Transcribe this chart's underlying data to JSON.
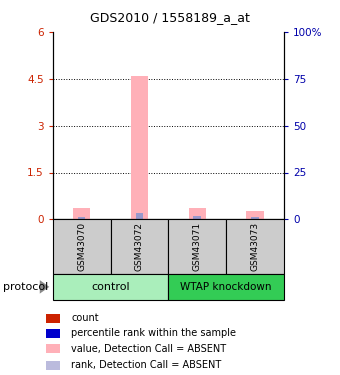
{
  "title": "GDS2010 / 1558189_a_at",
  "samples": [
    "GSM43070",
    "GSM43072",
    "GSM43071",
    "GSM43073"
  ],
  "ylim_left": [
    0,
    6
  ],
  "ylim_right": [
    0,
    100
  ],
  "yticks_left": [
    0,
    1.5,
    3.0,
    4.5,
    6
  ],
  "yticks_right": [
    0,
    25,
    50,
    75,
    100
  ],
  "bar_values_pink": [
    0.35,
    4.6,
    0.37,
    0.27
  ],
  "bar_values_blue": [
    0.09,
    0.22,
    0.11,
    0.09
  ],
  "pink_color": "#FFB0B8",
  "blue_color": "#9999CC",
  "sample_box_color": "#CCCCCC",
  "ctrl_color": "#AAEEBB",
  "wtap_color": "#33CC55",
  "legend_items": [
    {
      "color": "#CC2200",
      "label": "count"
    },
    {
      "color": "#0000CC",
      "label": "percentile rank within the sample"
    },
    {
      "color": "#FFB0B8",
      "label": "value, Detection Call = ABSENT"
    },
    {
      "color": "#BBBBDD",
      "label": "rank, Detection Call = ABSENT"
    }
  ]
}
